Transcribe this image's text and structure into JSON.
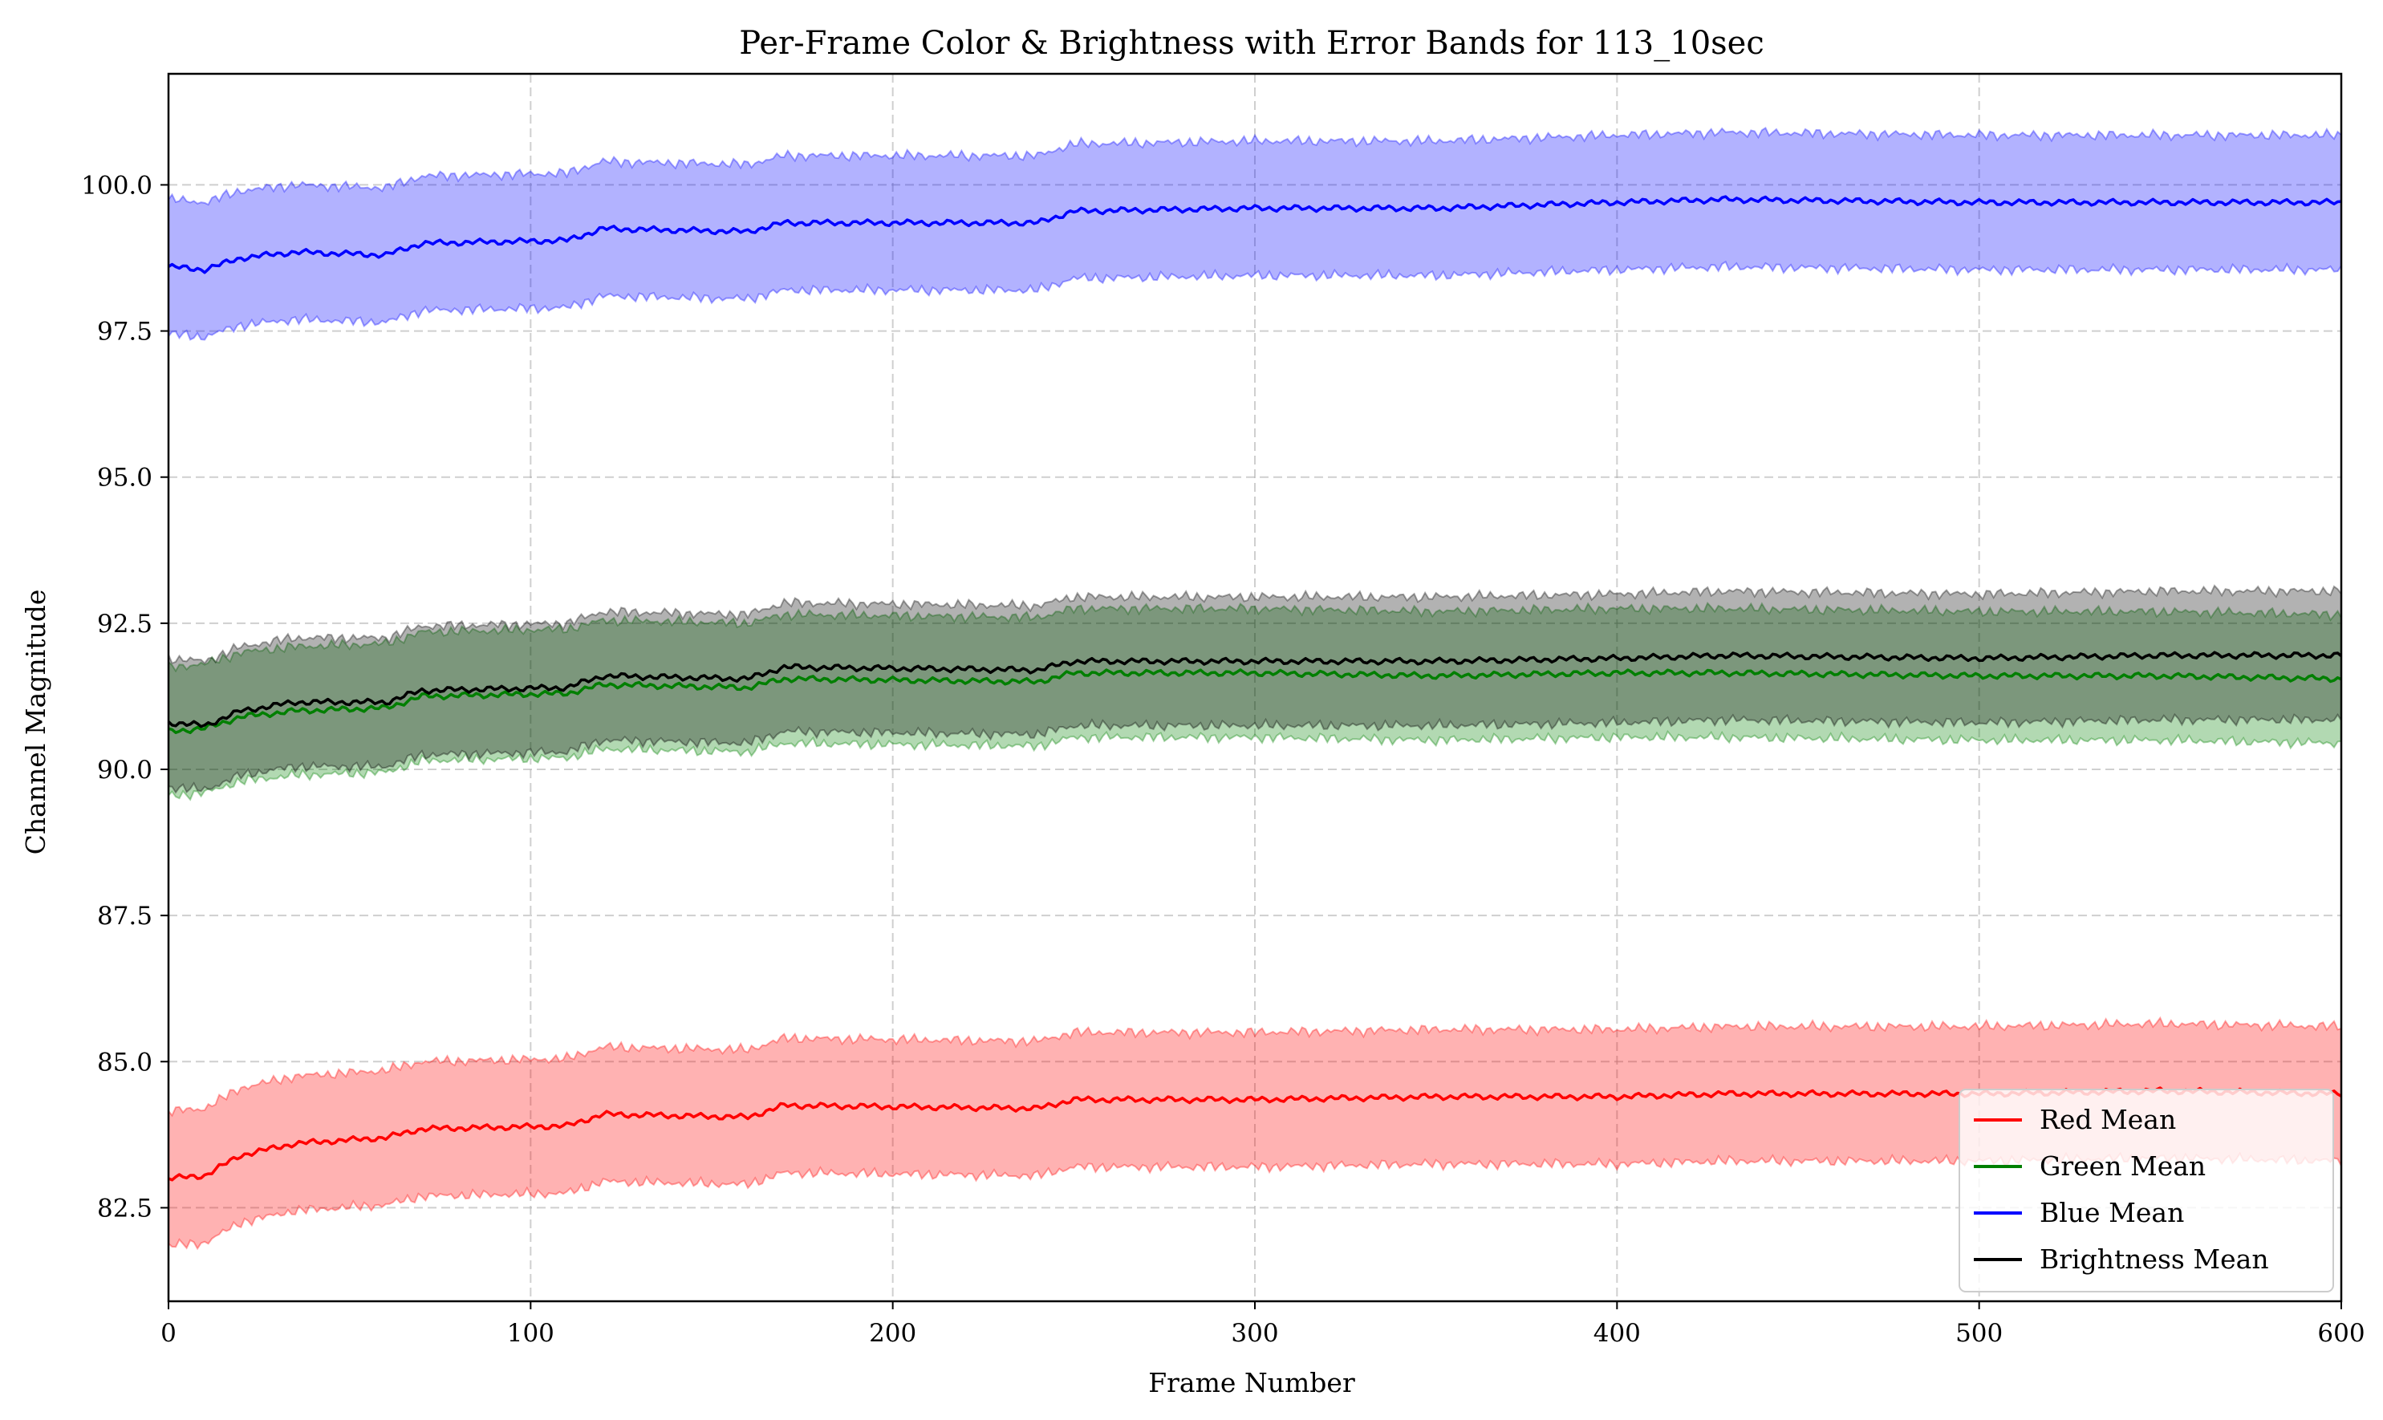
{
  "chart_data": {
    "type": "line",
    "title": "Per-Frame Color & Brightness with Error Bands for 113_10sec",
    "xlabel": "Frame Number",
    "ylabel": "Channel Magnitude",
    "xlim": [
      0,
      600
    ],
    "ylim": [
      80.9,
      101.9
    ],
    "xticks": [
      0,
      100,
      200,
      300,
      400,
      500,
      600
    ],
    "xtick_labels": [
      "0",
      "100",
      "200",
      "300",
      "400",
      "500",
      "600"
    ],
    "yticks": [
      82.5,
      85.0,
      87.5,
      90.0,
      92.5,
      95.0,
      97.5,
      100.0
    ],
    "ytick_labels": [
      "82.5",
      "85.0",
      "87.5",
      "90.0",
      "92.5",
      "95.0",
      "97.5",
      "100.0"
    ],
    "grid": true,
    "legend_position": "lower-right",
    "series": [
      {
        "name": "Blue Mean",
        "color": "#0000ff",
        "band_color": "#0000ff",
        "band_halfwidth": 1.15,
        "x": [
          0,
          10,
          20,
          35,
          60,
          70,
          110,
          120,
          160,
          170,
          240,
          250,
          300,
          350,
          400,
          430,
          500,
          550,
          600
        ],
        "values": [
          98.6,
          98.55,
          98.75,
          98.85,
          98.8,
          99.0,
          99.05,
          99.25,
          99.2,
          99.35,
          99.35,
          99.55,
          99.6,
          99.6,
          99.7,
          99.75,
          99.7,
          99.7,
          99.7
        ]
      },
      {
        "name": "Green Mean",
        "color": "#007f00",
        "band_color": "#008000",
        "band_halfwidth": 1.1,
        "x": [
          0,
          10,
          20,
          35,
          60,
          70,
          110,
          120,
          160,
          170,
          240,
          250,
          300,
          350,
          400,
          430,
          500,
          550,
          600
        ],
        "values": [
          90.65,
          90.7,
          90.9,
          91.0,
          91.05,
          91.25,
          91.3,
          91.45,
          91.4,
          91.55,
          91.5,
          91.65,
          91.65,
          91.6,
          91.65,
          91.65,
          91.6,
          91.6,
          91.55
        ]
      },
      {
        "name": "Brightness Mean",
        "color": "#000000",
        "band_color": "#000000",
        "band_halfwidth": 1.1,
        "x": [
          0,
          10,
          20,
          35,
          60,
          70,
          110,
          120,
          160,
          170,
          240,
          250,
          300,
          350,
          400,
          430,
          500,
          550,
          600
        ],
        "values": [
          90.8,
          90.75,
          91.0,
          91.15,
          91.15,
          91.35,
          91.4,
          91.6,
          91.55,
          91.75,
          91.7,
          91.85,
          91.85,
          91.85,
          91.9,
          91.95,
          91.9,
          91.95,
          91.95
        ]
      },
      {
        "name": "Red Mean",
        "color": "#ff0000",
        "band_color": "#ff0000",
        "band_halfwidth": 1.15,
        "x": [
          0,
          10,
          20,
          35,
          60,
          70,
          110,
          120,
          160,
          170,
          240,
          250,
          300,
          350,
          400,
          430,
          500,
          550,
          600
        ],
        "values": [
          83.0,
          83.05,
          83.4,
          83.6,
          83.7,
          83.85,
          83.9,
          84.1,
          84.05,
          84.25,
          84.2,
          84.35,
          84.35,
          84.4,
          84.4,
          84.45,
          84.45,
          84.5,
          84.45
        ]
      }
    ],
    "legend": [
      "Red Mean",
      "Green Mean",
      "Blue Mean",
      "Brightness Mean"
    ]
  }
}
